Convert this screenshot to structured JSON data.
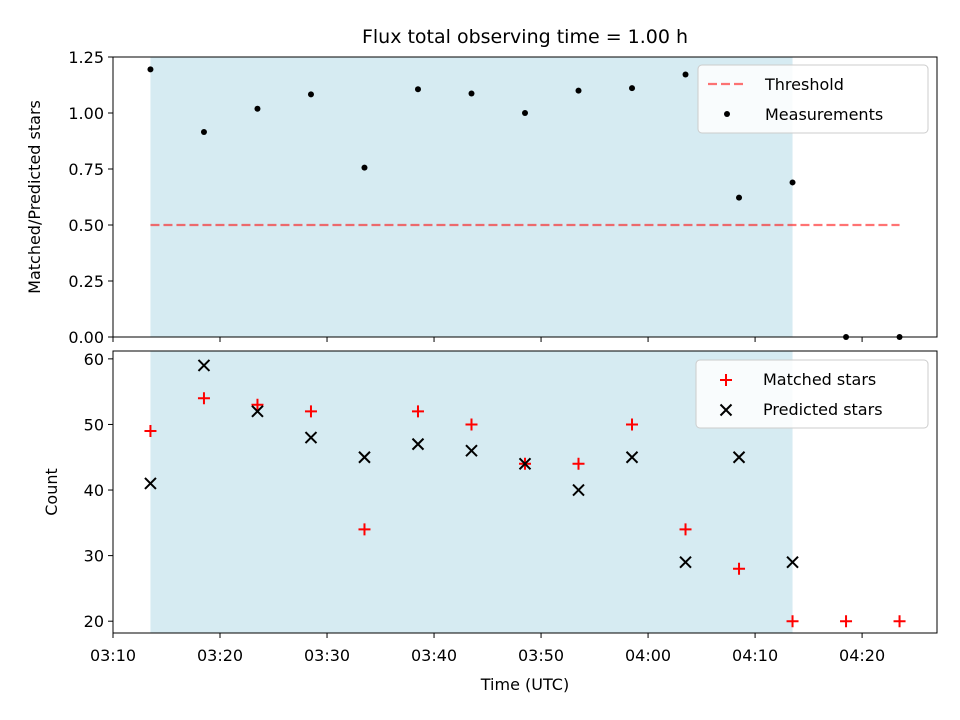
{
  "chart_data": [
    {
      "type": "scatter",
      "title": "Flux total observing time = 1.00 h",
      "ylabel": "Matched/Predicted stars",
      "xlabel": "",
      "ylim": [
        0,
        1.25
      ],
      "yticks": [
        "0.00",
        "0.25",
        "0.50",
        "0.75",
        "1.00",
        "1.25"
      ],
      "xlim": [
        "03:10",
        "04:27"
      ],
      "shaded_span": {
        "from": "03:13:30",
        "to": "04:13:30",
        "color": "#add8e6"
      },
      "threshold": {
        "name": "Threshold",
        "value": 0.5,
        "from": "03:13:30",
        "to": "04:23:30",
        "color": "#ff0000",
        "style": "dashed"
      },
      "series": [
        {
          "name": "Measurements",
          "marker": "dot",
          "color": "#000000",
          "x": [
            "03:13:30",
            "03:18:30",
            "03:23:30",
            "03:28:30",
            "03:33:30",
            "03:38:30",
            "03:43:30",
            "03:48:30",
            "03:53:30",
            "03:58:30",
            "04:03:30",
            "04:08:30",
            "04:13:30",
            "04:18:30",
            "04:23:30"
          ],
          "values": [
            1.195,
            0.915,
            1.019,
            1.083,
            0.756,
            1.106,
            1.087,
            1.0,
            1.1,
            1.111,
            1.172,
            0.622,
            0.69,
            0.0,
            0.0
          ]
        }
      ],
      "legend_position": "top-right",
      "grid": false
    },
    {
      "type": "scatter",
      "title": "",
      "ylabel": "Count",
      "xlabel": "Time (UTC)",
      "ylim": [
        18.2,
        61.2
      ],
      "yticks": [
        "20",
        "30",
        "40",
        "50",
        "60"
      ],
      "xlim": [
        "03:10",
        "04:27"
      ],
      "xticks": [
        "03:10",
        "03:20",
        "03:30",
        "03:40",
        "03:50",
        "04:00",
        "04:10",
        "04:20"
      ],
      "shaded_span": {
        "from": "03:13:30",
        "to": "04:13:30",
        "color": "#add8e6"
      },
      "series": [
        {
          "name": "Matched stars",
          "marker": "plus",
          "color": "#ff0000",
          "x": [
            "03:13:30",
            "03:18:30",
            "03:23:30",
            "03:28:30",
            "03:33:30",
            "03:38:30",
            "03:43:30",
            "03:48:30",
            "03:53:30",
            "03:58:30",
            "04:03:30",
            "04:08:30",
            "04:13:30",
            "04:18:30",
            "04:23:30"
          ],
          "values": [
            49,
            54,
            53,
            52,
            34,
            52,
            50,
            44,
            44,
            50,
            34,
            28,
            20,
            20,
            20
          ]
        },
        {
          "name": "Predicted stars",
          "marker": "x",
          "color": "#000000",
          "x": [
            "03:13:30",
            "03:18:30",
            "03:23:30",
            "03:28:30",
            "03:33:30",
            "03:38:30",
            "03:43:30",
            "03:48:30",
            "03:53:30",
            "03:58:30",
            "04:03:30",
            "04:08:30",
            "04:13:30"
          ],
          "values": [
            41,
            59,
            52,
            48,
            45,
            47,
            46,
            44,
            40,
            45,
            29,
            45,
            29
          ]
        }
      ],
      "legend_position": "top-right",
      "grid": false
    }
  ]
}
